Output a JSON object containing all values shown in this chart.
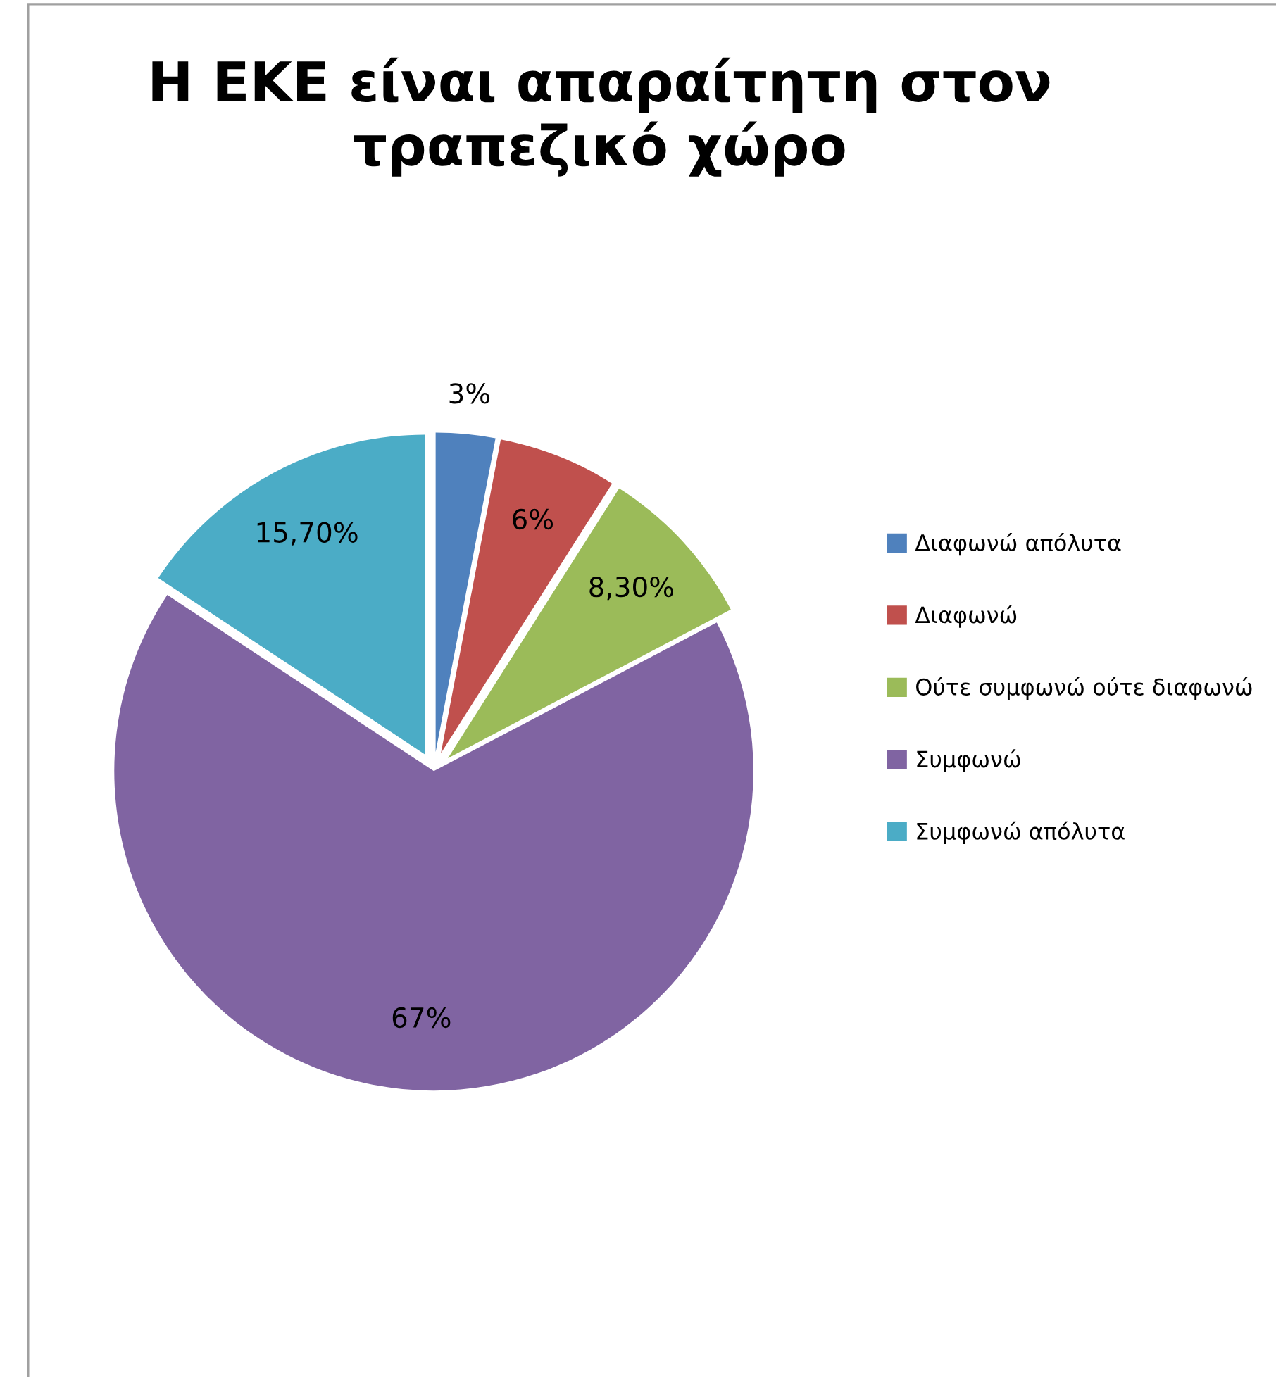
{
  "chart_data": {
    "type": "pie",
    "title": "Η ΕΚΕ είναι απαραίτητη στον τραπεζικό χώρο",
    "categories": [
      "Διαφωνώ απόλυτα",
      "Διαφωνώ",
      "Ούτε συμφωνώ ούτε διαφωνώ",
      "Συμφωνώ",
      "Συμφωνώ απόλυτα"
    ],
    "values": [
      3,
      6,
      8.3,
      67,
      15.7
    ],
    "colors": [
      "#4f81bd",
      "#c0504d",
      "#9bbb59",
      "#8064a2",
      "#4bacc6"
    ],
    "value_labels": [
      "3%",
      "6%",
      "8,30%",
      "67%",
      "15,70%"
    ],
    "legend": "right"
  }
}
